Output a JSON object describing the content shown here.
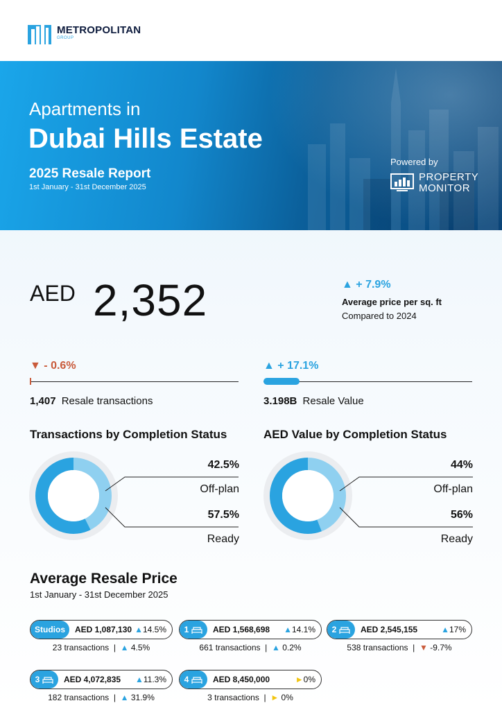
{
  "logo": {
    "name": "METROPOLITAN",
    "sub": "GROUP"
  },
  "banner": {
    "title_line1": "Apartments in",
    "title_line2": "Dubai Hills Estate",
    "report": "2025 Resale Report",
    "dates": "1st January - 31st December 2025",
    "powered_by": "Powered by",
    "provider_line1": "PROPERTY",
    "provider_line2": "MONITOR"
  },
  "headline": {
    "currency": "AED",
    "price": "2,352",
    "change": "+ 7.9%",
    "label": "Average price per sq. ft",
    "compared": "Compared to 2024"
  },
  "transactions": {
    "change": "- 0.6%",
    "value": "1,407",
    "label": "Resale transactions",
    "direction": "down"
  },
  "resale_value": {
    "change": "+ 17.1%",
    "value": "3.198B",
    "label": "Resale Value",
    "direction": "up"
  },
  "completion_tx": {
    "title": "Transactions by Completion Status",
    "offplan_pct": "42.5%",
    "offplan_label": "Off-plan",
    "ready_pct": "57.5%",
    "ready_label": "Ready",
    "offplan_share": 0.425
  },
  "completion_value": {
    "title": "AED Value by Completion Status",
    "offplan_pct": "44%",
    "offplan_label": "Off-plan",
    "ready_pct": "56%",
    "ready_label": "Ready",
    "offplan_share": 0.44
  },
  "average_resale": {
    "title": "Average Resale Price",
    "dates": "1st January - 31st December 2025",
    "tx_word": "transactions",
    "separator": "|",
    "items": [
      {
        "tag": "Studios",
        "price": "AED 1,087,130",
        "price_chg": "14.5%",
        "price_dir": "up",
        "tx": "23",
        "tx_chg": "4.5%",
        "tx_dir": "up"
      },
      {
        "tag": "1",
        "price": "AED 1,568,698",
        "price_chg": "14.1%",
        "price_dir": "up",
        "tx": "661",
        "tx_chg": "0.2%",
        "tx_dir": "up"
      },
      {
        "tag": "2",
        "price": "AED 2,545,155",
        "price_chg": "17%",
        "price_dir": "up",
        "tx": "538",
        "tx_chg": "-9.7%",
        "tx_dir": "down"
      },
      {
        "tag": "3",
        "price": "AED 4,072,835",
        "price_chg": "11.3%",
        "price_dir": "up",
        "tx": "182",
        "tx_chg": "31.9%",
        "tx_dir": "up"
      },
      {
        "tag": "4",
        "price": "AED 8,450,000",
        "price_chg": "0%",
        "price_dir": "flat",
        "tx": "3",
        "tx_chg": "0%",
        "tx_dir": "flat"
      }
    ]
  },
  "colors": {
    "accent": "#2aa3e0",
    "light_accent": "#8fd0f0",
    "negative": "#c95a3a",
    "neutral": "#f2c511"
  }
}
